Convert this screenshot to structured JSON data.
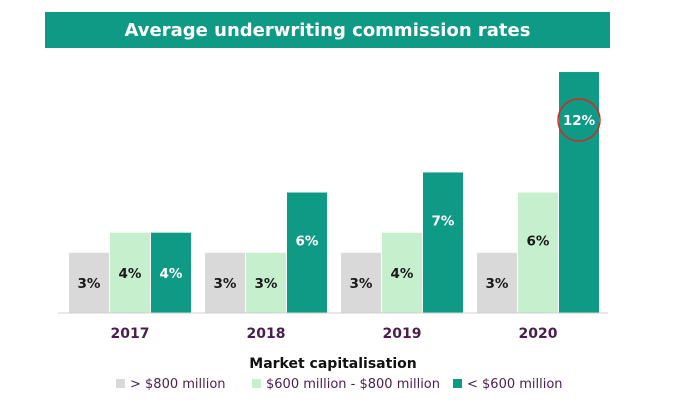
{
  "chart_data": {
    "type": "bar",
    "title": "Average underwriting commission rates",
    "xlabel": "Market capitalisation",
    "ylabel": "",
    "categories": [
      "2017",
      "2018",
      "2019",
      "2020"
    ],
    "series": [
      {
        "name": "> $800 million",
        "color": "#d9d9d9",
        "values": [
          3,
          3,
          3,
          3
        ],
        "labels": [
          "3%",
          "3%",
          "3%",
          "3%"
        ]
      },
      {
        "name": "$600 million - $800 million",
        "color": "#c6efce",
        "values": [
          4,
          3,
          4,
          6
        ],
        "labels": [
          "4%",
          "3%",
          "4%",
          "6%"
        ]
      },
      {
        "name": "< $600 million",
        "color": "#0e9a84",
        "values": [
          4,
          6,
          7,
          12
        ],
        "labels": [
          "4%",
          "6%",
          "7%",
          "12%"
        ]
      }
    ],
    "ylim": [
      0,
      12.5
    ],
    "grid": false,
    "legend": "bottom",
    "annotation": {
      "type": "circle",
      "color": "#d62728",
      "target": "2020 · < $600 million"
    }
  }
}
